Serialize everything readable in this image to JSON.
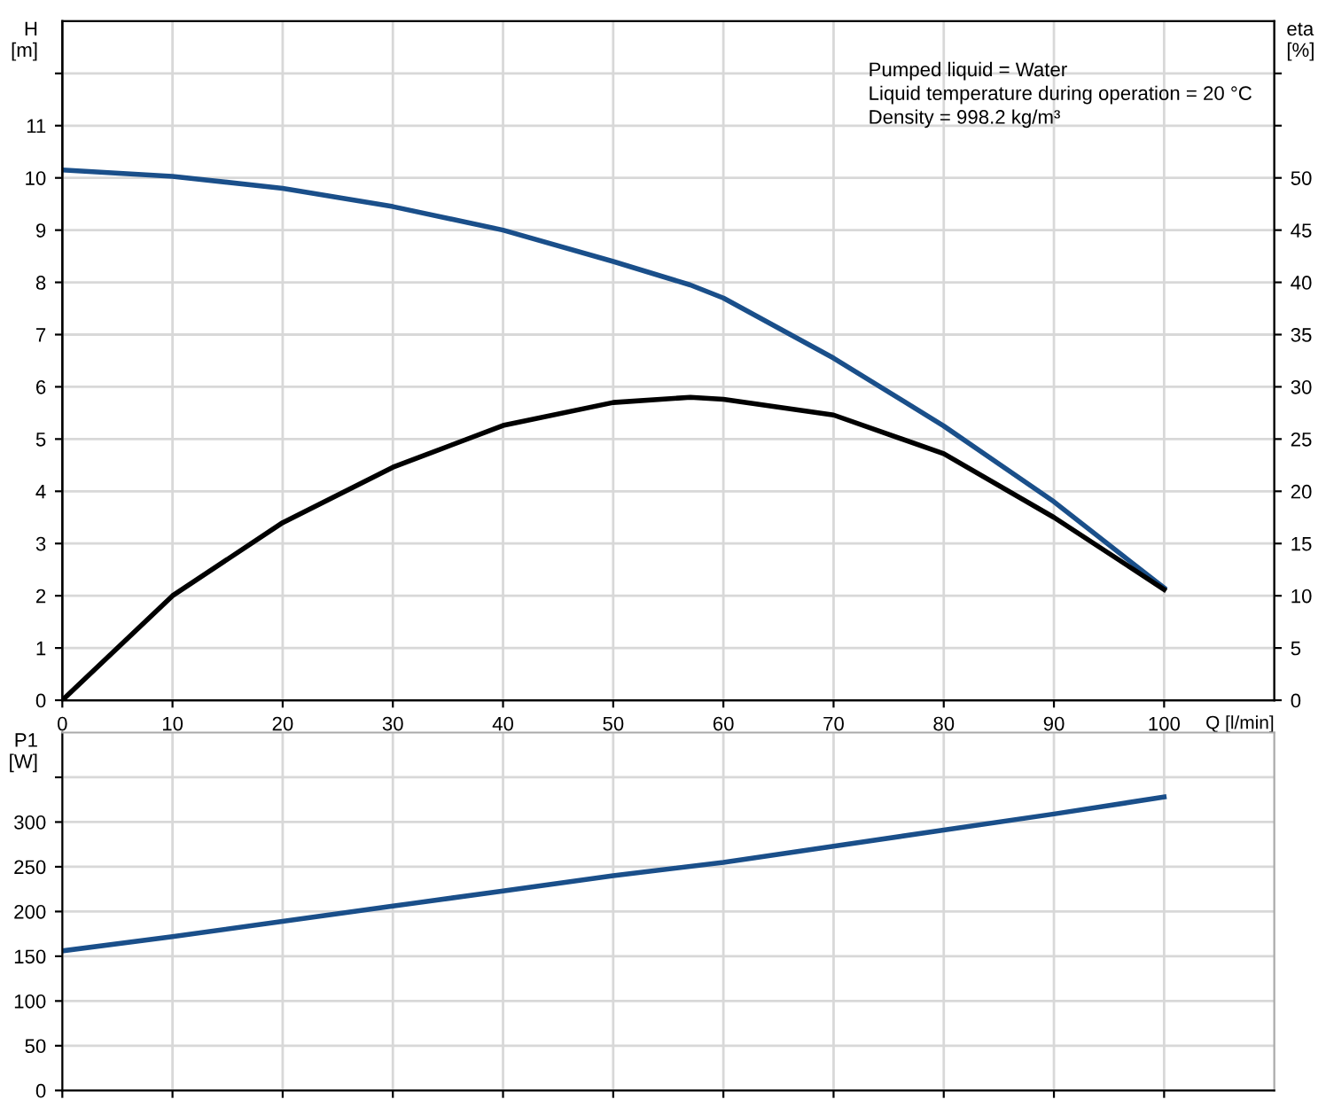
{
  "chart_data": [
    {
      "type": "line",
      "xlabel": "Q [l/min]",
      "ylabel": "H\n[m]",
      "y2label": "eta\n[%]",
      "annotations": [
        "Pumped liquid = Water",
        "Liquid temperature during operation = 20 °C",
        "Density = 998.2 kg/m³"
      ],
      "x": [
        0,
        10,
        20,
        30,
        40,
        50,
        57,
        60,
        70,
        80,
        90,
        100
      ],
      "series": [
        {
          "color": "#1a4f8a",
          "values": [
            10.15,
            10.03,
            9.8,
            9.45,
            9.0,
            8.4,
            7.95,
            7.7,
            6.55,
            5.25,
            3.8,
            2.15
          ]
        },
        {
          "color": "#000000",
          "axis": "y2",
          "values": [
            0,
            10,
            17,
            22.3,
            26.3,
            28.5,
            29,
            28.8,
            27.3,
            23.6,
            17.5,
            10.6
          ]
        }
      ],
      "xlim": [
        0,
        110
      ],
      "xticks": [
        0,
        10,
        20,
        30,
        40,
        50,
        60,
        70,
        80,
        90,
        100
      ],
      "ylim": [
        0,
        13
      ],
      "yticks": [
        0,
        1,
        2,
        3,
        4,
        5,
        6,
        7,
        8,
        9,
        10,
        11,
        {
          "value": 12,
          "label": null
        }
      ],
      "y2lim": [
        0,
        65
      ],
      "y2ticks": [
        0,
        5,
        10,
        15,
        20,
        25,
        30,
        35,
        40,
        45,
        50,
        {
          "value": 55,
          "label": null
        },
        {
          "value": 60,
          "label": null
        }
      ],
      "grid": true
    },
    {
      "type": "line",
      "ylabel": "P1\n[W]",
      "x": [
        0,
        10,
        20,
        30,
        40,
        50,
        60,
        70,
        80,
        90,
        100
      ],
      "series": [
        {
          "color": "#1a4f8a",
          "values": [
            156,
            172,
            189,
            206,
            223,
            240,
            255,
            273,
            291,
            309,
            328
          ]
        }
      ],
      "xlim": [
        0,
        110
      ],
      "xticks": [
        0,
        10,
        20,
        30,
        40,
        50,
        60,
        70,
        80,
        90,
        100
      ],
      "ylim": [
        0,
        400
      ],
      "yticks": [
        0,
        50,
        100,
        150,
        200,
        250,
        300,
        {
          "value": 350,
          "label": null
        }
      ],
      "tick_labels": "y",
      "grid": true
    }
  ]
}
